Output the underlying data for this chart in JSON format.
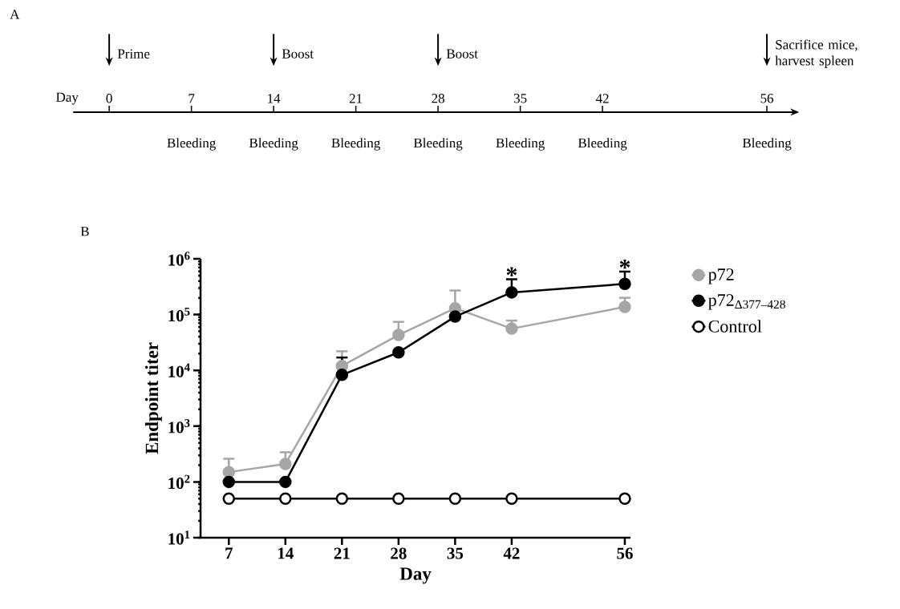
{
  "chart_data": [
    {
      "type": "other",
      "title": "A",
      "xlabel": "Day",
      "categories": [
        "0",
        "7",
        "14",
        "21",
        "28",
        "35",
        "42",
        null,
        "56"
      ],
      "annotations": [
        {
          "text": "Prime",
          "x": "0"
        },
        {
          "text": "Boost",
          "x": "14"
        },
        {
          "text": "Boost",
          "x": "28"
        },
        {
          "text": "Sacrifice mice, harvest spleen",
          "x": "56"
        },
        "Bleeding",
        "Bleeding",
        "Bleeding",
        "Bleeding",
        "Bleeding",
        "Bleeding",
        "Bleeding"
      ]
    },
    {
      "type": "line",
      "title": "B",
      "xlabel": "Day",
      "ylabel": "Endpoint titer",
      "log": "y",
      "marker": "circle",
      "legend": "right",
      "grid": false,
      "x": [
        7,
        14,
        21,
        28,
        35,
        42,
        56
      ],
      "xlim": [
        3.5,
        56.7
      ],
      "xticks": [
        7,
        14,
        21,
        28,
        35,
        42,
        56
      ],
      "ylim": [
        10,
        1000000
      ],
      "yticks": [
        {
          "value": 10,
          "label": "10$^{1}$"
        },
        {
          "value": 100,
          "label": "10$^{2}$"
        },
        {
          "value": 1000,
          "label": "10$^{3}$"
        },
        {
          "value": 10000,
          "label": "10$^{4}$"
        },
        {
          "value": 100000,
          "label": "10$^{5}$"
        },
        {
          "value": 1000000,
          "label": "10$^{6}$"
        }
      ],
      "series": [
        {
          "name": "p72",
          "color": "#a6a6a6",
          "values": [
            150,
            210,
            12000,
            43000,
            130000,
            56000,
            137000
          ],
          "errors": [
            [
              150,
              260
            ],
            [
              210,
              340
            ],
            [
              12000,
              22000
            ],
            [
              43000,
              74000
            ],
            [
              130000,
              270000
            ],
            [
              56000,
              78000
            ],
            [
              137000,
              200000
            ]
          ]
        },
        {
          "name": "p72$_{Δ377–428}$",
          "color": "#000000",
          "values": [
            100,
            100,
            8300,
            21000,
            92000,
            250000,
            355000
          ],
          "errors": [
            null,
            null,
            [
              8300,
              17000
            ],
            null,
            null,
            [
              250000,
              430000
            ],
            [
              355000,
              590000
            ]
          ]
        },
        {
          "name": "Control",
          "color": "#000000",
          "marker": "circle",
          "values": [
            50,
            50,
            50,
            50,
            50,
            50,
            50
          ]
        }
      ],
      "annotations": [
        {
          "text": "*",
          "x": 42,
          "y": 430000
        },
        {
          "text": "*",
          "x": 56,
          "y": 590000
        }
      ]
    }
  ]
}
